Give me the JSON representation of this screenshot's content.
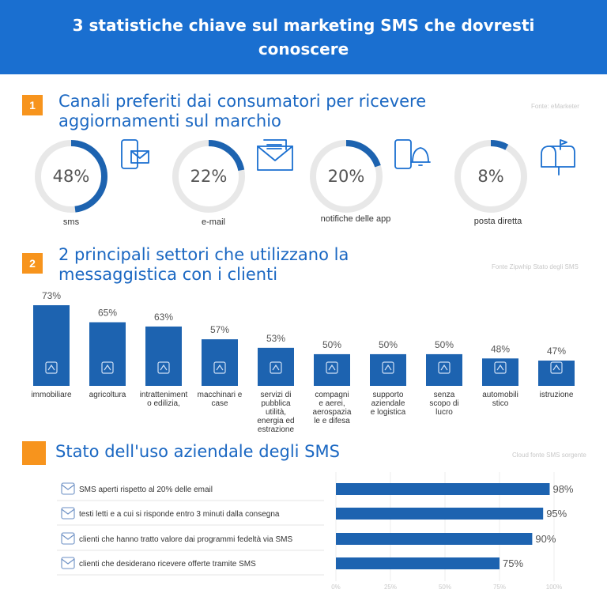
{
  "header": {
    "title_line1": "3 statistiche chiave sul marketing SMS che dovresti",
    "title_line2": "conoscere"
  },
  "sections": [
    {
      "num": "1",
      "title_line1": "Canali preferiti dai consumatori per ricevere",
      "title_line2": "aggiornamenti sul marchio",
      "source": "Fonte: eMarketer"
    },
    {
      "num": "2",
      "title_line1": "2 principali settori che utilizzano la",
      "title_line2": "messaggistica con i clienti",
      "source": "Fonte Zipwhip Stato degli SMS"
    },
    {
      "num": "",
      "title_line1": "Stato dell'uso aziendale degli SMS",
      "source": "Cloud fonte SMS sorgente"
    }
  ],
  "colors": {
    "header": "#1a6fd0",
    "accent_orange": "#f7941d",
    "bar_blue": "#1d63b0",
    "ring_grey": "#e8e8e8",
    "title_blue": "#1a67c2",
    "ring_fill": "#1d63b0"
  },
  "chart_data": [
    {
      "type": "pie",
      "subtype": "donut-set",
      "values": [
        48,
        22,
        20,
        8
      ],
      "display": [
        "48%",
        "22%",
        "20%",
        "8%"
      ],
      "categories": [
        "sms",
        "e-mail",
        "notifiche delle app",
        "posta diretta"
      ],
      "icons": [
        "mobile-mail-icon",
        "envelope-icon",
        "phone-bell-icon",
        "mailbox-icon"
      ]
    },
    {
      "type": "bar",
      "categories": [
        "immobiliare",
        "agricoltura",
        "intratteniment o edilizia,",
        "macchinari e case",
        "servizi di pubblica utilità, energia ed estrazione",
        "compagni e aerei, aerospazia le e difesa",
        "supporto aziendale e logistica",
        "senza scopo di lucro",
        "automobilistico",
        "istruzione"
      ],
      "labels": [
        [
          "immobiliare"
        ],
        [
          "agricoltura"
        ],
        [
          "intratteniment",
          "o edilizia,"
        ],
        [
          "macchinari e",
          "case"
        ],
        [
          "servizi di",
          "pubblica",
          "utilità,",
          "energia ed",
          "estrazione"
        ],
        [
          "compagni",
          "e aerei,",
          "aerospazia",
          "le e difesa"
        ],
        [
          "supporto",
          "aziendale",
          "e logistica"
        ],
        [
          "senza",
          "scopo di",
          "lucro"
        ],
        [
          "automobili",
          "stico"
        ],
        [
          "istruzione"
        ]
      ],
      "values": [
        73,
        65,
        63,
        57,
        53,
        50,
        50,
        50,
        48,
        47
      ],
      "display": [
        "73%",
        "65%",
        "63%",
        "57%",
        "53%",
        "50%",
        "50%",
        "50%",
        "48%",
        "47%"
      ],
      "ylim": [
        0,
        100
      ],
      "icons": [
        "building-icon",
        "tractor-icon",
        "balloons-icon",
        "crane-icon",
        "plug-icon",
        "airplane-icon",
        "truck-icon",
        "heart-hands-icon",
        "car-icon",
        "graduation-cap-icon"
      ]
    },
    {
      "type": "bar",
      "orientation": "horizontal",
      "categories": [
        "SMS aperti rispetto al 20% delle email",
        "testi letti e a cui si risponde entro 3 minuti dalla consegna",
        "clienti che hanno tratto valore dai programmi fedeltà via SMS",
        "clienti che desiderano ricevere offerte tramite SMS"
      ],
      "values": [
        98,
        95,
        90,
        75
      ],
      "display": [
        "98%",
        "95%",
        "90%",
        "75%"
      ],
      "xlim": [
        0,
        100
      ],
      "xticks": [
        "0%",
        "25%",
        "50%",
        "75%",
        "100%"
      ],
      "icons": [
        "sms-envelope-icon",
        "stopwatch-icon",
        "gift-icon",
        "coupon-icon"
      ]
    }
  ]
}
